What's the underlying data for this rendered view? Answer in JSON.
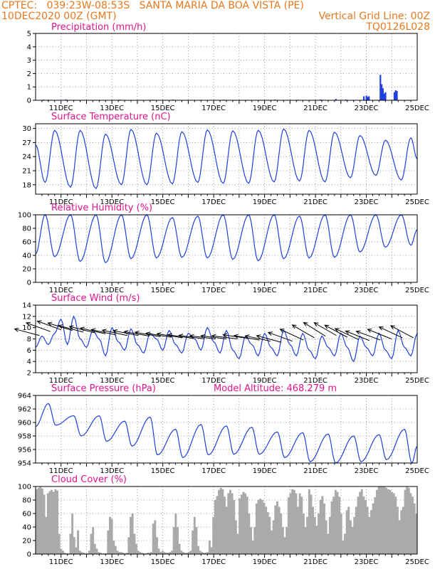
{
  "header": {
    "line1_left": "CPTEC:   039:23W-08:53S   SANTA MARIA DA BOA VISTA (PE)",
    "line2_left": "10DEC2020 00Z (GMT)",
    "line2_right": "Vertical Grid Line: 00Z",
    "line3_right": "TQ0126L028"
  },
  "colors": {
    "header": "#e8781e",
    "title": "#e0148c",
    "line": "#2040e0",
    "cloud": "#aaaaaa",
    "axis": "#000000"
  },
  "chart_data": [
    {
      "id": "precip",
      "type": "bar",
      "title": "Precipitation (mm/h)",
      "ylim": [
        0,
        5
      ],
      "yticks": [
        0,
        1,
        2,
        3,
        4,
        5
      ],
      "xticks": [
        "11DEC",
        "13DEC",
        "15DEC",
        "17DEC",
        "19DEC",
        "21DEC",
        "23DEC",
        "25DEC"
      ],
      "x_unit": "days since 10DEC2020 00Z",
      "values": [
        [
          0.3,
          0.05
        ],
        [
          0.5,
          0.04
        ],
        [
          1.2,
          0.06
        ],
        [
          2.5,
          0.03
        ],
        [
          3.3,
          0.05
        ],
        [
          4.6,
          0.04
        ],
        [
          5.4,
          0.05
        ],
        [
          6.5,
          0.03
        ],
        [
          7.4,
          0.04
        ],
        [
          8.3,
          0.03
        ],
        [
          9.4,
          0.05
        ],
        [
          10.3,
          0.04
        ],
        [
          11.2,
          0.06
        ],
        [
          11.8,
          0.1
        ],
        [
          12.2,
          0.05
        ],
        [
          12.9,
          0.3
        ],
        [
          13.0,
          0.35
        ],
        [
          13.05,
          0.25
        ],
        [
          13.1,
          0.3
        ],
        [
          13.55,
          1.9
        ],
        [
          13.6,
          1.2
        ],
        [
          13.65,
          0.9
        ],
        [
          13.7,
          0.5
        ],
        [
          13.75,
          0.6
        ],
        [
          14.1,
          0.6
        ],
        [
          14.15,
          0.75
        ],
        [
          14.2,
          0.7
        ]
      ]
    },
    {
      "id": "temp",
      "type": "line",
      "title": "Surface Temperature (nC)",
      "ylim": [
        16,
        31
      ],
      "yticks": [
        18,
        21,
        24,
        27,
        30
      ],
      "xticks": [
        "11DEC",
        "13DEC",
        "15DEC",
        "17DEC",
        "19DEC",
        "21DEC",
        "23DEC",
        "25DEC"
      ],
      "min_values": [
        18.5,
        17.5,
        17.2,
        18.0,
        18.0,
        18.2,
        18.5,
        18.3,
        18.3,
        18.6,
        18.8,
        18.6,
        19.5,
        20.0,
        19.0
      ],
      "max_values": [
        29.6,
        29.6,
        28.8,
        29.8,
        29.0,
        29.3,
        29.7,
        29.5,
        29.6,
        29.9,
        29.6,
        29.2,
        28.5,
        27.5,
        28.0
      ],
      "start": 26.5,
      "end": 23.5
    },
    {
      "id": "rh",
      "type": "line",
      "title": "Relative Humidity (%)",
      "ylim": [
        0,
        100
      ],
      "yticks": [
        0,
        20,
        40,
        60,
        80,
        100
      ],
      "xticks": [
        "11DEC",
        "13DEC",
        "15DEC",
        "17DEC",
        "19DEC",
        "21DEC",
        "23DEC",
        "25DEC"
      ],
      "max_values": [
        100,
        100,
        100,
        100,
        100,
        96,
        98,
        100,
        100,
        100,
        98,
        100,
        100,
        100,
        100
      ],
      "min_values": [
        38,
        31,
        29,
        35,
        36,
        37,
        36,
        34,
        32,
        35,
        36,
        37,
        45,
        52,
        55
      ],
      "start": 42,
      "end": 78
    },
    {
      "id": "wind",
      "type": "line",
      "title": "Surface Wind (m/s)",
      "ylim": [
        2,
        14
      ],
      "yticks": [
        2,
        4,
        6,
        8,
        10,
        12,
        14
      ],
      "xticks": [
        "11DEC",
        "13DEC",
        "15DEC",
        "17DEC",
        "19DEC",
        "21DEC",
        "23DEC",
        "25DEC"
      ],
      "values": [
        6.5,
        8.5,
        7.0,
        9.0,
        11.5,
        7.0,
        12.0,
        8.0,
        6.5,
        9.5,
        8.0,
        5.0,
        10.0,
        7.5,
        6.0,
        9.8,
        7.0,
        5.5,
        9.0,
        8.0,
        6.0,
        9.5,
        7.0,
        5.5,
        9.0,
        8.0,
        6.0,
        10.0,
        7.5,
        5.5,
        9.5,
        6.0,
        4.5,
        8.5,
        7.0,
        5.0,
        9.0,
        6.5,
        5.0,
        9.5,
        7.0,
        5.0,
        9.0,
        6.0,
        4.5,
        8.5,
        6.5,
        5.0,
        9.0,
        6.5,
        4.0,
        8.5,
        6.5,
        5.0,
        9.0,
        6.0,
        4.5,
        9.5,
        6.5,
        5.0,
        9.0
      ],
      "arrows_y": [
        8.6,
        9.3,
        9.6,
        9.5,
        9.2,
        9.1,
        8.9,
        8.7,
        8.6,
        8.6,
        8.5,
        8.4,
        8.3,
        8.2,
        8.1,
        8.0,
        8.0,
        8.0,
        8.0,
        8.1,
        7.8,
        7.6,
        7.4,
        7.6,
        7.8,
        8.2,
        8.5,
        8.6,
        8.3,
        7.9,
        7.7,
        7.8,
        8.0,
        8.2,
        8.2
      ],
      "arrows_dir_deg": [
        165,
        160,
        160,
        163,
        165,
        166,
        167,
        168,
        168,
        169,
        170,
        170,
        171,
        171,
        172,
        172,
        173,
        173,
        173,
        172,
        170,
        168,
        165,
        160,
        155,
        150,
        148,
        150,
        152,
        155,
        158,
        160,
        158,
        155,
        152
      ]
    },
    {
      "id": "press",
      "type": "line",
      "title": "Surface Pressure (hPa)",
      "subtitle": "Model Altitude: 468.279 m",
      "ylim": [
        954,
        964
      ],
      "yticks": [
        954,
        956,
        958,
        960,
        962,
        964
      ],
      "xticks": [
        "11DEC",
        "13DEC",
        "15DEC",
        "17DEC",
        "19DEC",
        "21DEC",
        "23DEC",
        "25DEC"
      ],
      "max_values": [
        962.8,
        961.0,
        961.0,
        960.2,
        960.8,
        959.0,
        959.7,
        959.5,
        959.3,
        958.6,
        958.5,
        958.3,
        958.0,
        958.2,
        959.0
      ],
      "min_values": [
        959.6,
        958.0,
        957.2,
        956.5,
        955.2,
        954.8,
        955.2,
        955.3,
        955.3,
        954.8,
        954.2,
        954.0,
        954.2,
        954.5,
        954.0
      ],
      "start": 959.4,
      "end": 956.5
    },
    {
      "id": "cloud",
      "type": "area",
      "title": "Cloud Cover (%)",
      "ylim": [
        0,
        100
      ],
      "yticks": [
        0,
        20,
        40,
        60,
        80,
        100
      ],
      "xticks": [
        "11DEC",
        "13DEC",
        "15DEC",
        "17DEC",
        "19DEC",
        "21DEC",
        "23DEC",
        "25DEC"
      ],
      "values": [
        96,
        98,
        100,
        97,
        88,
        55,
        90,
        93,
        95,
        92,
        96,
        94,
        30,
        8,
        5,
        2,
        1,
        1,
        30,
        60,
        25,
        10,
        35,
        5,
        3,
        2,
        1,
        1,
        5,
        30,
        40,
        15,
        8,
        3,
        2,
        1,
        1,
        1,
        35,
        55,
        52,
        20,
        12,
        5,
        3,
        3,
        2,
        1,
        2,
        25,
        55,
        60,
        30,
        15,
        5,
        3,
        2,
        1,
        1,
        2,
        2,
        3,
        45,
        50,
        25,
        8,
        3,
        5,
        3,
        2,
        2,
        3,
        5,
        40,
        60,
        40,
        15,
        5,
        3,
        2,
        2,
        3,
        5,
        35,
        55,
        40,
        12,
        5,
        3,
        2,
        2,
        3,
        20,
        10,
        55,
        80,
        86,
        95,
        98,
        96,
        85,
        70,
        90,
        95,
        90,
        80,
        50,
        30,
        82,
        88,
        92,
        90,
        85,
        60,
        40,
        20,
        40,
        75,
        80,
        82,
        80,
        76,
        70,
        62,
        55,
        35,
        50,
        72,
        78,
        70,
        60,
        40,
        25,
        40,
        84,
        90,
        96,
        95,
        90,
        70,
        90,
        85,
        60,
        40,
        55,
        96,
        88,
        70,
        55,
        42,
        60,
        80,
        86,
        75,
        50,
        30,
        55,
        78,
        85,
        95,
        92,
        85,
        60,
        20,
        30,
        65,
        70,
        50,
        40,
        55,
        70,
        85,
        92,
        96,
        85,
        80,
        70,
        55,
        65,
        75,
        84,
        95,
        100,
        100,
        100,
        100,
        98,
        96,
        95,
        92,
        90,
        85,
        70,
        50,
        65,
        70,
        95,
        100,
        98,
        90,
        85,
        75,
        60
      ]
    }
  ]
}
